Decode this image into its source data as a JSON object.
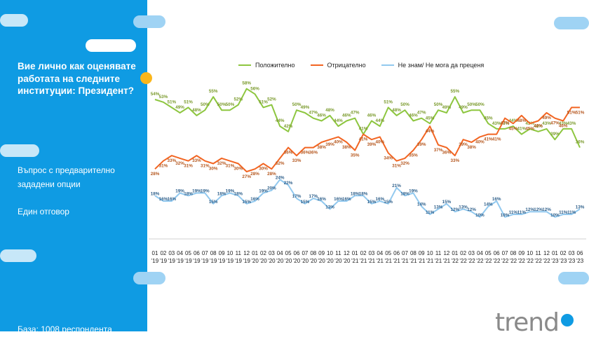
{
  "sidebar": {
    "question": "Вие лично как оценявате работата на следните институции: Президент?",
    "option_note": "Въпрос с предварително зададени опции",
    "answer_note": "Един отговор",
    "base": "База:  1008 респондента"
  },
  "logo": "trend",
  "colors": {
    "sidebar": "#0f9be3",
    "positive": "#8dc63f",
    "negative": "#f26522",
    "unknown": "#92c9ef",
    "accent_dot": "#fbb61b"
  },
  "chart_data": {
    "type": "line",
    "x": [
      "01 '19",
      "02 '19",
      "03 '19",
      "04 '19",
      "05 '19",
      "06 '19",
      "07 '19",
      "08 '19",
      "09 '19",
      "10 '19",
      "11 '19",
      "12 '19",
      "01 '20",
      "02 '20",
      "03 '20",
      "04 '20",
      "05 '20",
      "06 '20",
      "07 '20",
      "08 '20",
      "09 '20",
      "10 '20",
      "11 '20",
      "12 '20",
      "01 '21",
      "02 '21",
      "03 '21",
      "04 '21",
      "05 '21",
      "06 '21",
      "07 '21",
      "08 '21",
      "09 '21",
      "10 '21",
      "11 '21",
      "12 '21",
      "01 '22",
      "02 '22",
      "03 '22",
      "04 '22",
      "05 '22",
      "06 '22",
      "07 '22",
      "08 '22",
      "09 '22",
      "10 '22",
      "11 '22",
      "12 '22",
      "01 '23",
      "02 '23",
      "03 '23",
      "06 '23"
    ],
    "x_labels_top": [
      "01",
      "02",
      "03",
      "04",
      "05",
      "06",
      "07",
      "08",
      "09",
      "10",
      "11",
      "12",
      "01",
      "02",
      "03",
      "04",
      "05",
      "06",
      "07",
      "08",
      "09",
      "10",
      "11",
      "12",
      "01",
      "02",
      "03",
      "04",
      "05",
      "06",
      "07",
      "08",
      "09",
      "10",
      "11",
      "12",
      "01",
      "02",
      "03",
      "04",
      "05",
      "06",
      "07",
      "08",
      "09",
      "10",
      "11",
      "12",
      "01",
      "02",
      "03",
      "06"
    ],
    "x_labels_bottom": [
      "'19",
      "'19",
      "'19",
      "'19",
      "'19",
      "'19",
      "'19",
      "'19",
      "'19",
      "'19",
      "'19",
      "'19",
      "'20",
      "'20",
      "'20",
      "'20",
      "'20",
      "'20",
      "'20",
      "'20",
      "'20",
      "'20",
      "'20",
      "'20",
      "'21",
      "'21",
      "'21",
      "'21",
      "'21",
      "'21",
      "'21",
      "'21",
      "'21",
      "'21",
      "'21",
      "'21",
      "'22",
      "'22",
      "'22",
      "'22",
      "'22",
      "'22",
      "'22",
      "'22",
      "'22",
      "'22",
      "'22",
      "'22",
      "'23",
      "'23",
      "'23",
      "'23"
    ],
    "series": [
      {
        "name": "Положително",
        "color": "#8dc63f",
        "values": [
          54,
          53,
          51,
          49,
          51,
          48,
          50,
          55,
          50,
          50,
          52,
          58,
          56,
          51,
          52,
          44,
          42,
          50,
          49,
          47,
          46,
          48,
          44,
          46,
          47,
          41,
          46,
          44,
          51,
          48,
          50,
          46,
          47,
          45,
          50,
          49,
          55,
          49,
          50,
          50,
          45,
          43,
          43,
          44,
          41,
          43,
          42,
          43,
          39,
          43,
          43,
          36
        ]
      },
      {
        "name": "Отрицателно",
        "color": "#f26522",
        "values": [
          28,
          31,
          33,
          32,
          31,
          33,
          31,
          30,
          32,
          31,
          30,
          27,
          28,
          30,
          28,
          32,
          36,
          33,
          36,
          36,
          38,
          39,
          40,
          38,
          35,
          41,
          39,
          40,
          34,
          31,
          32,
          35,
          39,
          44,
          37,
          36,
          33,
          39,
          38,
          40,
          41,
          41,
          47,
          45,
          48,
          45,
          46,
          49,
          47,
          46,
          51,
          51
        ]
      },
      {
        "name": "Не знам/ Не мога да преценя",
        "color": "#92c9ef",
        "values": [
          18,
          16,
          16,
          19,
          18,
          19,
          19,
          15,
          18,
          19,
          18,
          15,
          16,
          19,
          20,
          24,
          22,
          17,
          15,
          17,
          16,
          13,
          16,
          16,
          18,
          18,
          15,
          16,
          15,
          21,
          18,
          19,
          14,
          11,
          13,
          15,
          12,
          13,
          12,
          10,
          14,
          16,
          10,
          11,
          11,
          12,
          12,
          12,
          10,
          11,
          11,
          13
        ]
      }
    ],
    "ylim": [
      0,
      65
    ]
  }
}
